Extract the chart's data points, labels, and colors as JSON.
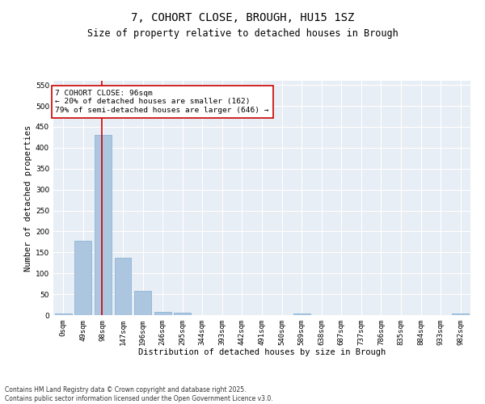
{
  "title": "7, COHORT CLOSE, BROUGH, HU15 1SZ",
  "subtitle": "Size of property relative to detached houses in Brough",
  "xlabel": "Distribution of detached houses by size in Brough",
  "ylabel": "Number of detached properties",
  "bin_labels": [
    "0sqm",
    "49sqm",
    "98sqm",
    "147sqm",
    "196sqm",
    "246sqm",
    "295sqm",
    "344sqm",
    "393sqm",
    "442sqm",
    "491sqm",
    "540sqm",
    "589sqm",
    "638sqm",
    "687sqm",
    "737sqm",
    "786sqm",
    "835sqm",
    "884sqm",
    "933sqm",
    "982sqm"
  ],
  "bar_values": [
    3,
    178,
    430,
    137,
    58,
    8,
    6,
    0,
    0,
    0,
    0,
    0,
    4,
    0,
    0,
    0,
    0,
    0,
    0,
    0,
    3
  ],
  "bar_color": "#adc6e0",
  "bar_edge_color": "#7bafd4",
  "vline_x": 1.96,
  "vline_color": "#cc0000",
  "annotation_text": "7 COHORT CLOSE: 96sqm\n← 20% of detached houses are smaller (162)\n79% of semi-detached houses are larger (646) →",
  "annotation_box_color": "#ffffff",
  "annotation_box_edge_color": "#cc0000",
  "ylim": [
    0,
    560
  ],
  "yticks": [
    0,
    50,
    100,
    150,
    200,
    250,
    300,
    350,
    400,
    450,
    500,
    550
  ],
  "bg_color": "#e8eef5",
  "grid_color": "#ffffff",
  "footer_text": "Contains HM Land Registry data © Crown copyright and database right 2025.\nContains public sector information licensed under the Open Government Licence v3.0.",
  "title_fontsize": 10,
  "subtitle_fontsize": 8.5,
  "axis_label_fontsize": 7.5,
  "tick_fontsize": 6.5,
  "annotation_fontsize": 6.8,
  "footer_fontsize": 5.5,
  "ylabel_fontsize": 7.5
}
